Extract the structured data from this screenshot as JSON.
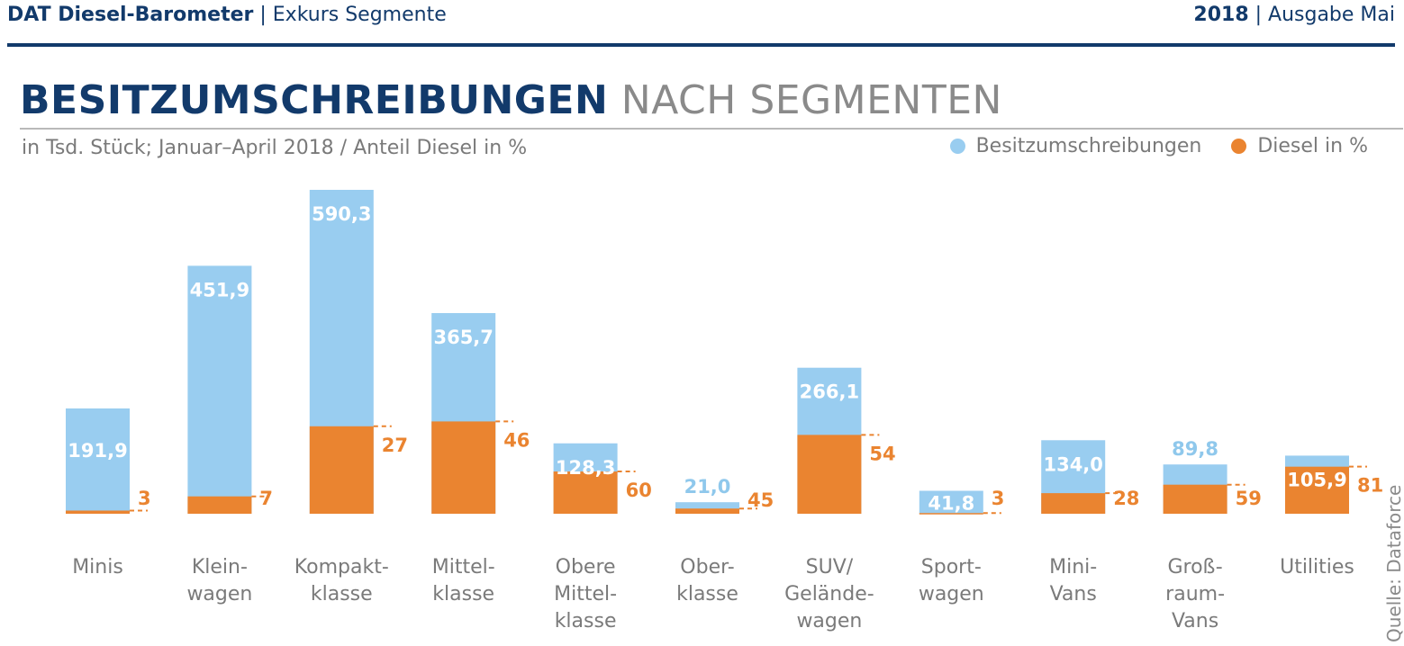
{
  "header": {
    "left_bold": "DAT Diesel-Barometer",
    "left_rest": " | Exkurs Segmente",
    "right_bold": "2018",
    "right_rest": " | Ausgabe Mai"
  },
  "title_strong": "BESITZUMSCHREIBUNGEN",
  "title_light": " NACH SEGMENTEN",
  "source": "Quelle: Dataforce",
  "colors": {
    "primary": "#123a6b",
    "blue": "#99cdf0",
    "orange": "#ea8430",
    "grey": "#7a7a7a"
  },
  "chart_data": {
    "type": "bar",
    "subtitle": "in Tsd. Stück; Januar–April 2018 / Anteil Diesel in %",
    "legend": [
      "Besitzumschreibungen",
      "Diesel in %"
    ],
    "legend_position": "top-right",
    "categories": [
      [
        "Minis"
      ],
      [
        "Klein-",
        "wagen"
      ],
      [
        "Kompakt-",
        "klasse"
      ],
      [
        "Mittel-",
        "klasse"
      ],
      [
        "Obere",
        "Mittel-",
        "klasse"
      ],
      [
        "Ober-",
        "klasse"
      ],
      [
        "SUV/",
        "Gelände-",
        "wagen"
      ],
      [
        "Sport-",
        "wagen"
      ],
      [
        "Mini-",
        "Vans"
      ],
      [
        "Groß-",
        "raum-",
        "Vans"
      ],
      [
        "Utilities"
      ]
    ],
    "series": [
      {
        "name": "Besitzumschreibungen",
        "values": [
          191.9,
          451.9,
          590.3,
          365.7,
          128.3,
          21.0,
          266.1,
          41.8,
          134.0,
          89.8,
          105.9
        ],
        "labels": [
          "191,9",
          "451,9",
          "590,3",
          "365,7",
          "128,3",
          "21,0",
          "266,1",
          "41,8",
          "134,0",
          "89,8",
          "105,9"
        ]
      },
      {
        "name": "Diesel in %",
        "values": [
          3,
          7,
          27,
          46,
          60,
          45,
          54,
          3,
          28,
          59,
          81
        ],
        "labels": [
          "3",
          "7",
          "27",
          "46",
          "60",
          "45",
          "54",
          "3",
          "28",
          "59",
          "81"
        ]
      }
    ],
    "ylim": [
      0,
      590.3
    ],
    "grid": false
  }
}
